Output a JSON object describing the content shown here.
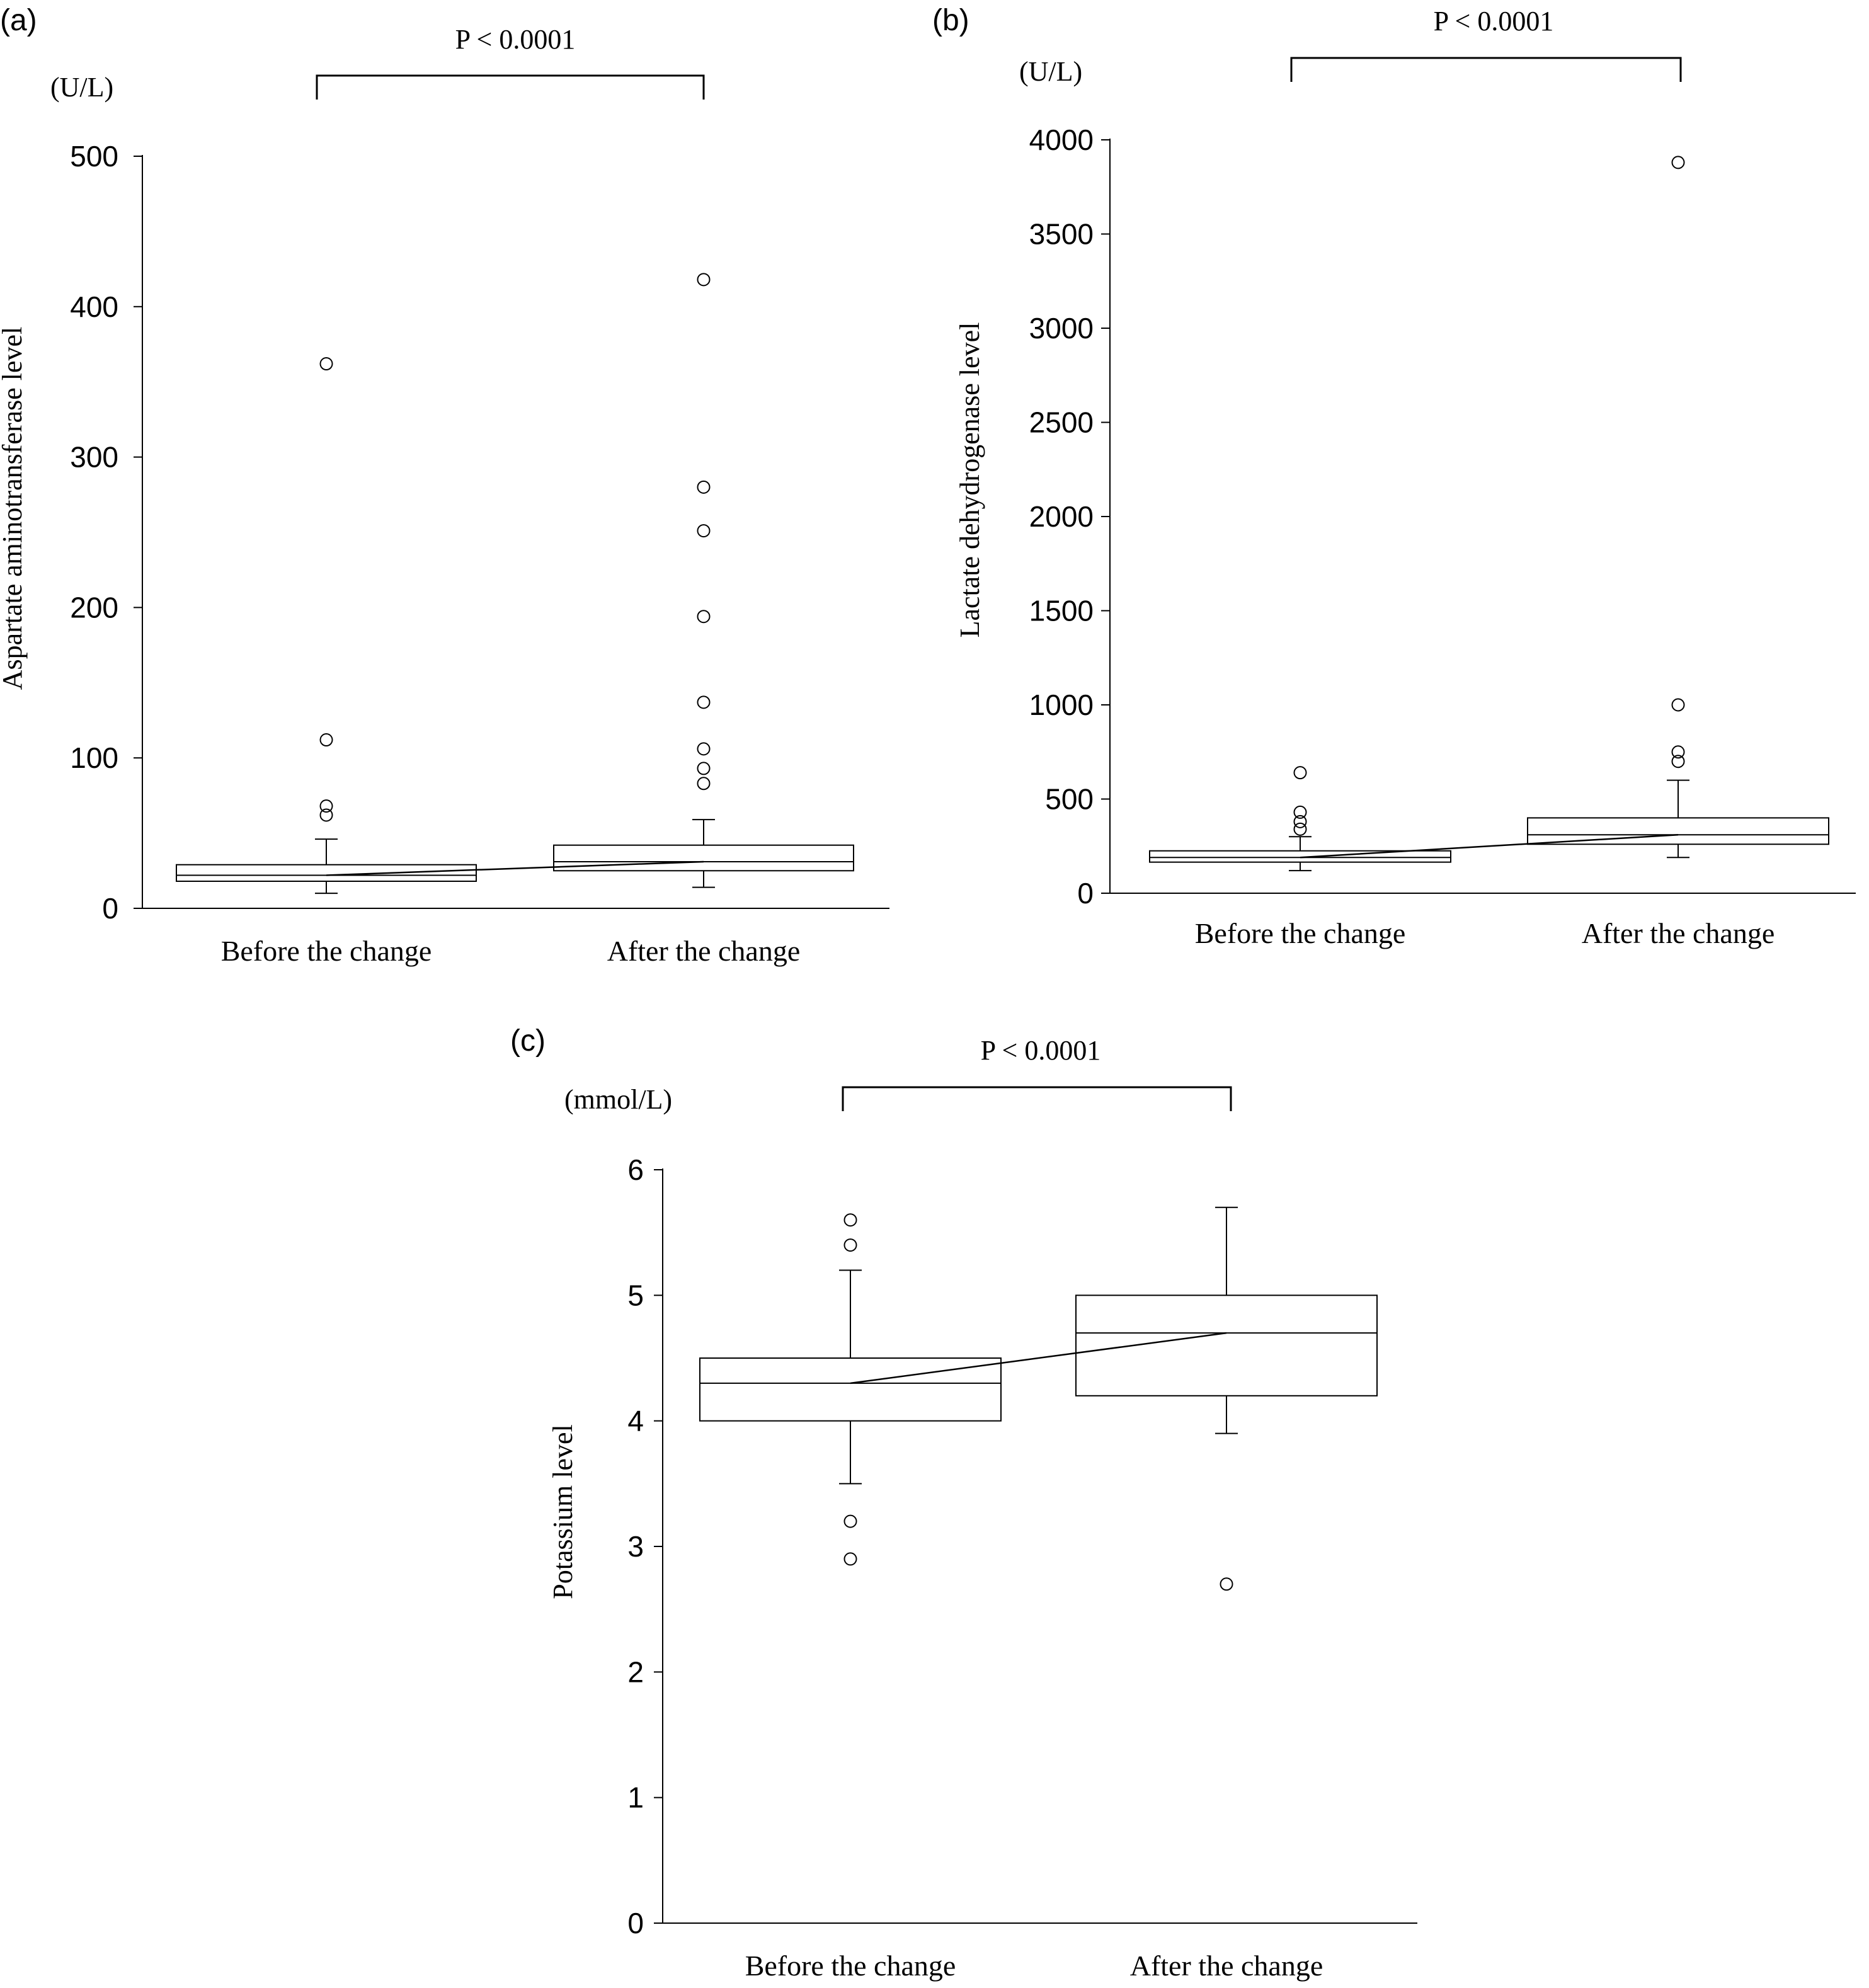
{
  "chart_data": [
    {
      "type": "box",
      "panel_label": "(a)",
      "unit": "(U/L)",
      "ylabel": "Aspartate aminotransferase level",
      "ylim": [
        0,
        500
      ],
      "yticks": [
        0,
        100,
        200,
        300,
        400,
        500
      ],
      "significance": "P < 0.0001",
      "categories": [
        "Before the change",
        "After the change"
      ],
      "boxes": [
        {
          "name": "Before the change",
          "whisker_low": 10,
          "q1": 18,
          "median": 22,
          "q3": 29,
          "whisker_high": 46,
          "outliers": [
            62,
            68,
            112,
            362
          ]
        },
        {
          "name": "After the change",
          "whisker_low": 14,
          "q1": 25,
          "median": 31,
          "q3": 42,
          "whisker_high": 59,
          "outliers": [
            83,
            93,
            106,
            137,
            194,
            251,
            280,
            418
          ]
        }
      ],
      "trend_line": [
        22,
        31
      ]
    },
    {
      "type": "box",
      "panel_label": "(b)",
      "unit": "(U/L)",
      "ylabel": "Lactate dehydrogenase level",
      "ylim": [
        0,
        4000
      ],
      "yticks": [
        0,
        500,
        1000,
        1500,
        2000,
        2500,
        3000,
        3500,
        4000
      ],
      "significance": "P < 0.0001",
      "categories": [
        "Before the change",
        "After the change"
      ],
      "boxes": [
        {
          "name": "Before the change",
          "whisker_low": 120,
          "q1": 165,
          "median": 190,
          "q3": 225,
          "whisker_high": 300,
          "outliers": [
            340,
            380,
            430,
            640
          ]
        },
        {
          "name": "After the change",
          "whisker_low": 190,
          "q1": 260,
          "median": 310,
          "q3": 400,
          "whisker_high": 600,
          "outliers": [
            700,
            750,
            1000,
            3880
          ]
        }
      ],
      "trend_line": [
        190,
        310
      ]
    },
    {
      "type": "box",
      "panel_label": "(c)",
      "unit": "(mmol/L)",
      "ylabel": "Potassium level",
      "ylim": [
        0,
        6
      ],
      "yticks": [
        0,
        1,
        2,
        3,
        4,
        5,
        6
      ],
      "significance": "P < 0.0001",
      "categories": [
        "Before the change",
        "After the change"
      ],
      "boxes": [
        {
          "name": "Before the change",
          "whisker_low": 3.5,
          "q1": 4.0,
          "median": 4.3,
          "q3": 4.5,
          "whisker_high": 5.2,
          "outliers": [
            2.9,
            3.2,
            5.4,
            5.6
          ]
        },
        {
          "name": "After the change",
          "whisker_low": 3.9,
          "q1": 4.2,
          "median": 4.7,
          "q3": 5.0,
          "whisker_high": 5.7,
          "outliers": [
            2.7
          ]
        }
      ],
      "trend_line": [
        4.3,
        4.7
      ]
    }
  ]
}
